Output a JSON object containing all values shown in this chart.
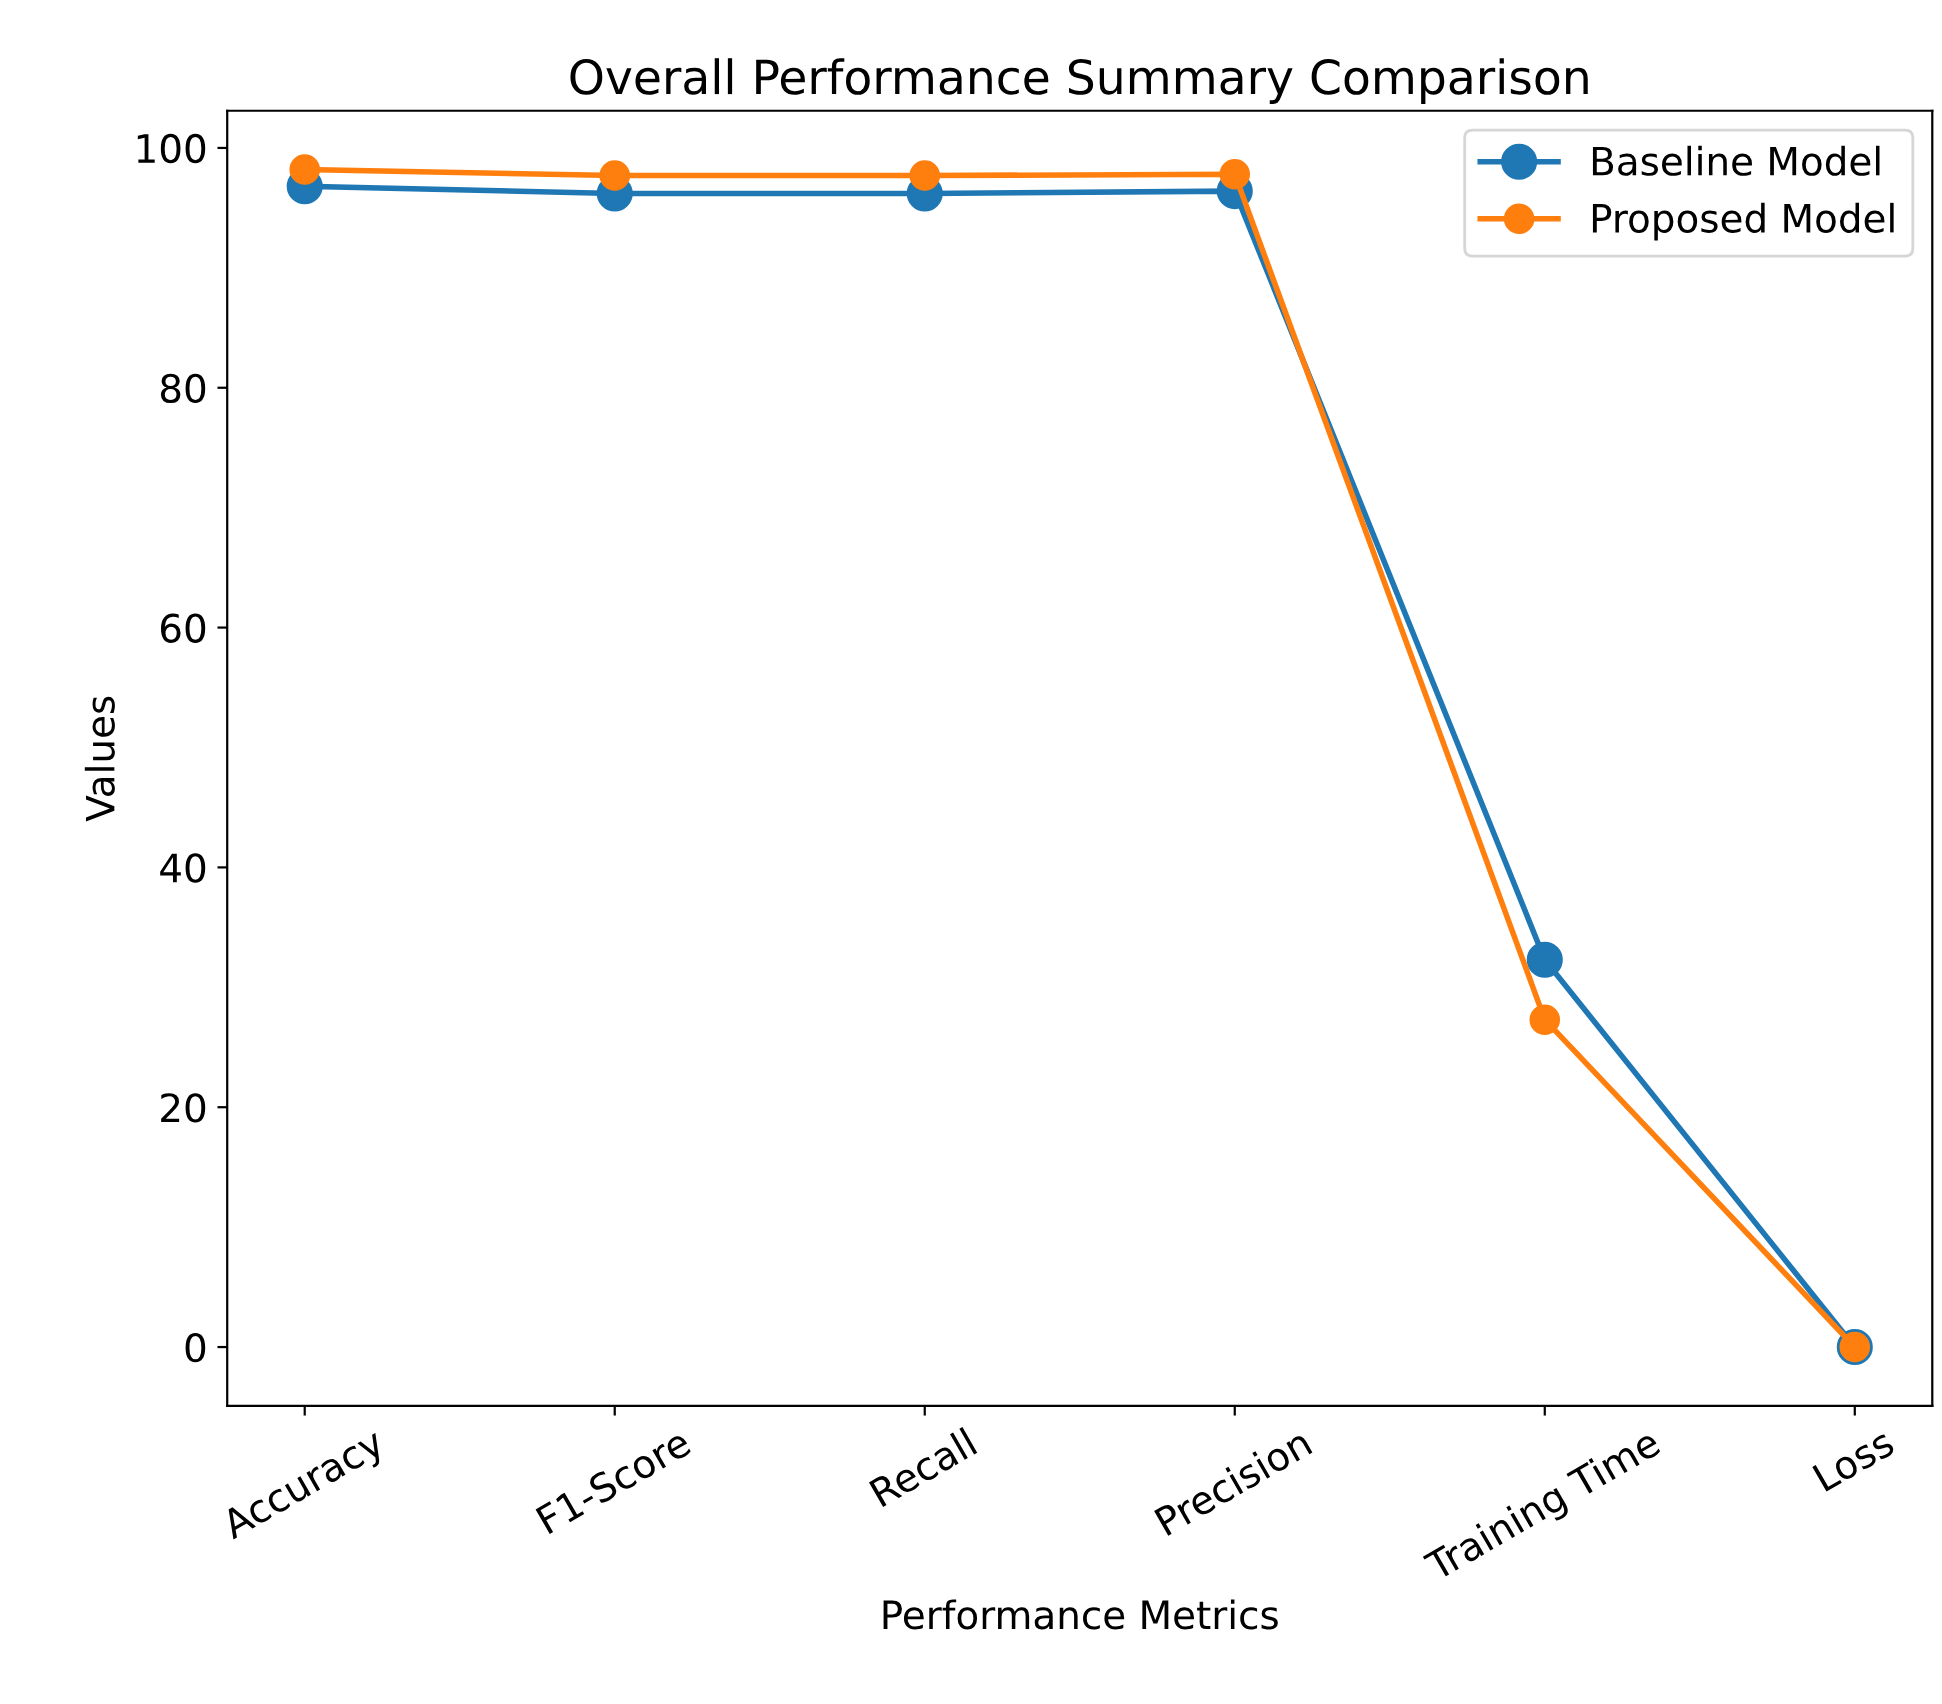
{
  "chart_data": {
    "type": "line",
    "title": "Overall Performance Summary Comparison",
    "xlabel": "Performance Metrics",
    "ylabel": "Values",
    "categories": [
      "Accuracy",
      "F1-Score",
      "Recall",
      "Precision",
      "Training Time",
      "Loss"
    ],
    "series": [
      {
        "name": "Baseline Model",
        "color": "#1f77b4",
        "values": [
          96.8,
          96.2,
          96.2,
          96.4,
          32.3,
          0
        ]
      },
      {
        "name": "Proposed Model",
        "color": "#ff7f0e",
        "values": [
          98.2,
          97.7,
          97.7,
          97.8,
          27.3,
          0
        ]
      }
    ],
    "ylim": [
      -4.9,
      103.1
    ],
    "yticks": [
      0,
      20,
      40,
      60,
      80,
      100
    ],
    "marker": "circle",
    "line_style": "solid",
    "legend": "top right",
    "grid": false
  }
}
